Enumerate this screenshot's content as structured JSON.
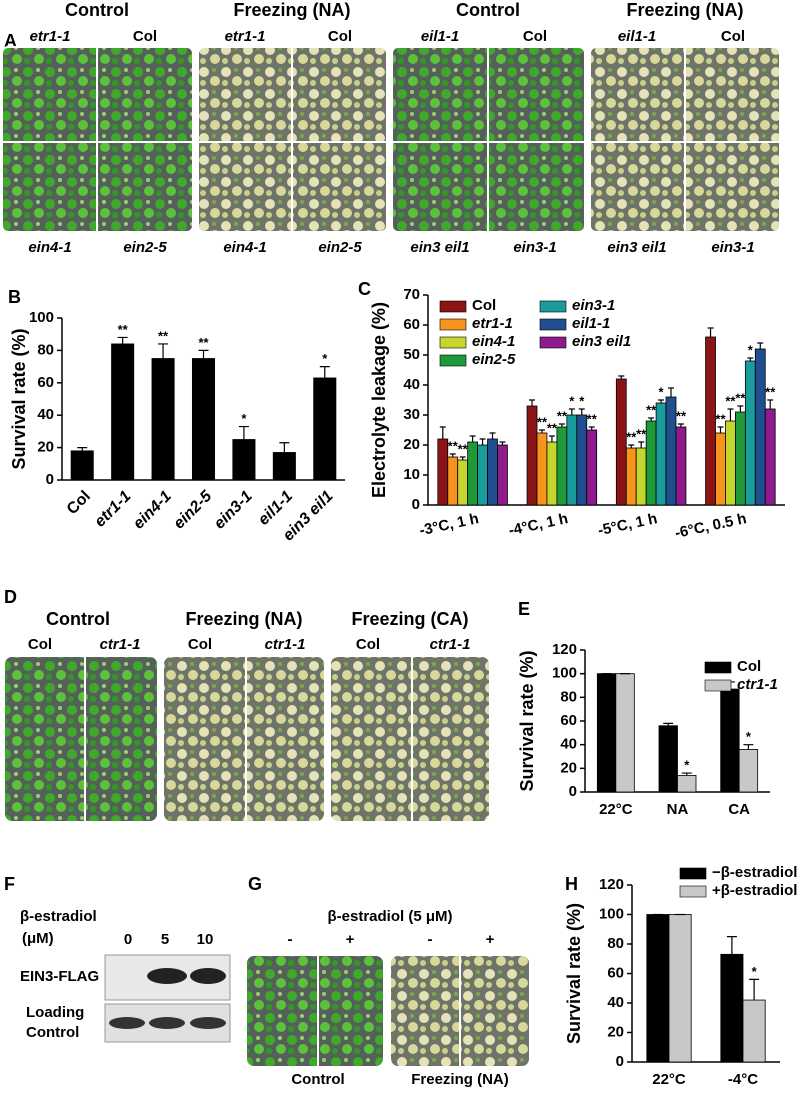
{
  "panel_labels": [
    "A",
    "B",
    "C",
    "D",
    "E",
    "F",
    "G",
    "H"
  ],
  "panel_a": {
    "headers": [
      "Control",
      "Freezing (NA)",
      "Control",
      "Freezing (NA)"
    ],
    "top_labels": [
      "etr1-1",
      "Col",
      "etr1-1",
      "Col",
      "eil1-1",
      "Col",
      "eil1-1",
      "Col"
    ],
    "bottom_labels": [
      "ein4-1",
      "ein2-5",
      "ein4-1",
      "ein2-5",
      "ein3 eil1",
      "ein3-1",
      "ein3 eil1",
      "ein3-1"
    ]
  },
  "panel_d": {
    "headers": [
      "Control",
      "Freezing (NA)",
      "Freezing (CA)"
    ],
    "sub_labels": [
      "Col",
      "ctr1-1",
      "Col",
      "ctr1-1",
      "Col",
      "ctr1-1"
    ]
  },
  "panel_f": {
    "treatment": "β-estradiol",
    "unit": "(μM)",
    "lanes": [
      "0",
      "5",
      "10"
    ],
    "rows": [
      "EIN3-FLAG",
      "Loading",
      "Control"
    ]
  },
  "panel_g": {
    "treatment": "β-estradiol (5 μM)",
    "lanes": [
      "-",
      "+",
      "-",
      "+"
    ],
    "bottom_labels": [
      "Control",
      "Freezing (NA)"
    ]
  },
  "chart_data": [
    {
      "type": "bar",
      "y_label": "Survival rate (%)",
      "categories": [
        "Col",
        "etr1-1",
        "ein4-1",
        "ein2-5",
        "ein3-1",
        "eil1-1",
        "ein3 eil1"
      ],
      "values": [
        18,
        84,
        75,
        75,
        25,
        17,
        63
      ],
      "errors": [
        2,
        4,
        9,
        5,
        8,
        6,
        7
      ],
      "annotations": [
        null,
        "**",
        "**",
        "**",
        "*",
        null,
        "*"
      ],
      "color": "#000000",
      "ylim": [
        0,
        100
      ],
      "yticks": [
        0,
        20,
        40,
        60,
        80,
        100
      ]
    },
    {
      "type": "bar",
      "y_label": "Electrolyte leakage (%)",
      "categories": [
        "-3°C, 1 h",
        "-4°C, 1 h",
        "-5°C, 1 h",
        "-6°C, 0.5 h"
      ],
      "ylim": [
        0,
        70
      ],
      "yticks": [
        0,
        10,
        20,
        30,
        40,
        50,
        60,
        70
      ],
      "legend": "upper left",
      "series": [
        {
          "name": "Col",
          "color": "#8b1414",
          "values": [
            22,
            33,
            42,
            56
          ],
          "errors": [
            4,
            2,
            1,
            3
          ],
          "annotations": [
            null,
            null,
            null,
            null
          ]
        },
        {
          "name": "etr1-1",
          "color": "#f7941d",
          "values": [
            16,
            24,
            19,
            24
          ],
          "errors": [
            1,
            1,
            1,
            2
          ],
          "annotations": [
            "**",
            "**",
            "**",
            "**"
          ]
        },
        {
          "name": "ein4-1",
          "color": "#c5d62e",
          "values": [
            15,
            21,
            19,
            28
          ],
          "errors": [
            1,
            2,
            2,
            4
          ],
          "annotations": [
            "**",
            "**",
            "**",
            "**"
          ]
        },
        {
          "name": "ein2-5",
          "color": "#1e9a3a",
          "values": [
            21,
            26,
            28,
            31
          ],
          "errors": [
            2,
            1,
            1,
            2
          ],
          "annotations": [
            null,
            "**",
            "**",
            "**"
          ]
        },
        {
          "name": "ein3-1",
          "color": "#1a9c9c",
          "values": [
            20,
            30,
            34,
            48
          ],
          "errors": [
            2,
            2,
            1,
            1
          ],
          "annotations": [
            null,
            "*",
            "*",
            "*"
          ]
        },
        {
          "name": "eil1-1",
          "color": "#1f4f8f",
          "values": [
            22,
            30,
            36,
            52
          ],
          "errors": [
            2,
            2,
            3,
            2
          ],
          "annotations": [
            null,
            "*",
            null,
            null
          ]
        },
        {
          "name": "ein3 eil1",
          "color": "#8e1a8e",
          "values": [
            20,
            25,
            26,
            32
          ],
          "errors": [
            1,
            1,
            1,
            3
          ],
          "annotations": [
            null,
            "**",
            "**",
            "**"
          ]
        }
      ]
    },
    {
      "type": "bar",
      "y_label": "Survival rate (%)",
      "categories": [
        "22°C",
        "NA",
        "CA"
      ],
      "ylim": [
        0,
        120
      ],
      "yticks": [
        0,
        20,
        40,
        60,
        80,
        100,
        120
      ],
      "legend": "upper right",
      "series": [
        {
          "name": "Col",
          "color": "#000000",
          "values": [
            100,
            56,
            87
          ],
          "errors": [
            0,
            2,
            6
          ],
          "annotations": [
            null,
            null,
            null
          ]
        },
        {
          "name": "ctr1-1",
          "color": "#c8c8c8",
          "values": [
            100,
            14,
            36
          ],
          "errors": [
            0,
            2,
            4
          ],
          "annotations": [
            null,
            "*",
            "*"
          ]
        }
      ]
    },
    {
      "type": "bar",
      "y_label": "Survival rate (%)",
      "categories": [
        "22°C",
        "-4°C"
      ],
      "ylim": [
        0,
        120
      ],
      "yticks": [
        0,
        20,
        40,
        60,
        80,
        100,
        120
      ],
      "legend": "upper right",
      "series": [
        {
          "name": "−β-estradiol",
          "color": "#000000",
          "values": [
            100,
            73
          ],
          "errors": [
            0,
            12
          ],
          "annotations": [
            null,
            null
          ]
        },
        {
          "name": "+β-estradiol",
          "color": "#c8c8c8",
          "values": [
            100,
            42
          ],
          "errors": [
            0,
            14
          ],
          "annotations": [
            null,
            "*"
          ]
        }
      ]
    }
  ]
}
